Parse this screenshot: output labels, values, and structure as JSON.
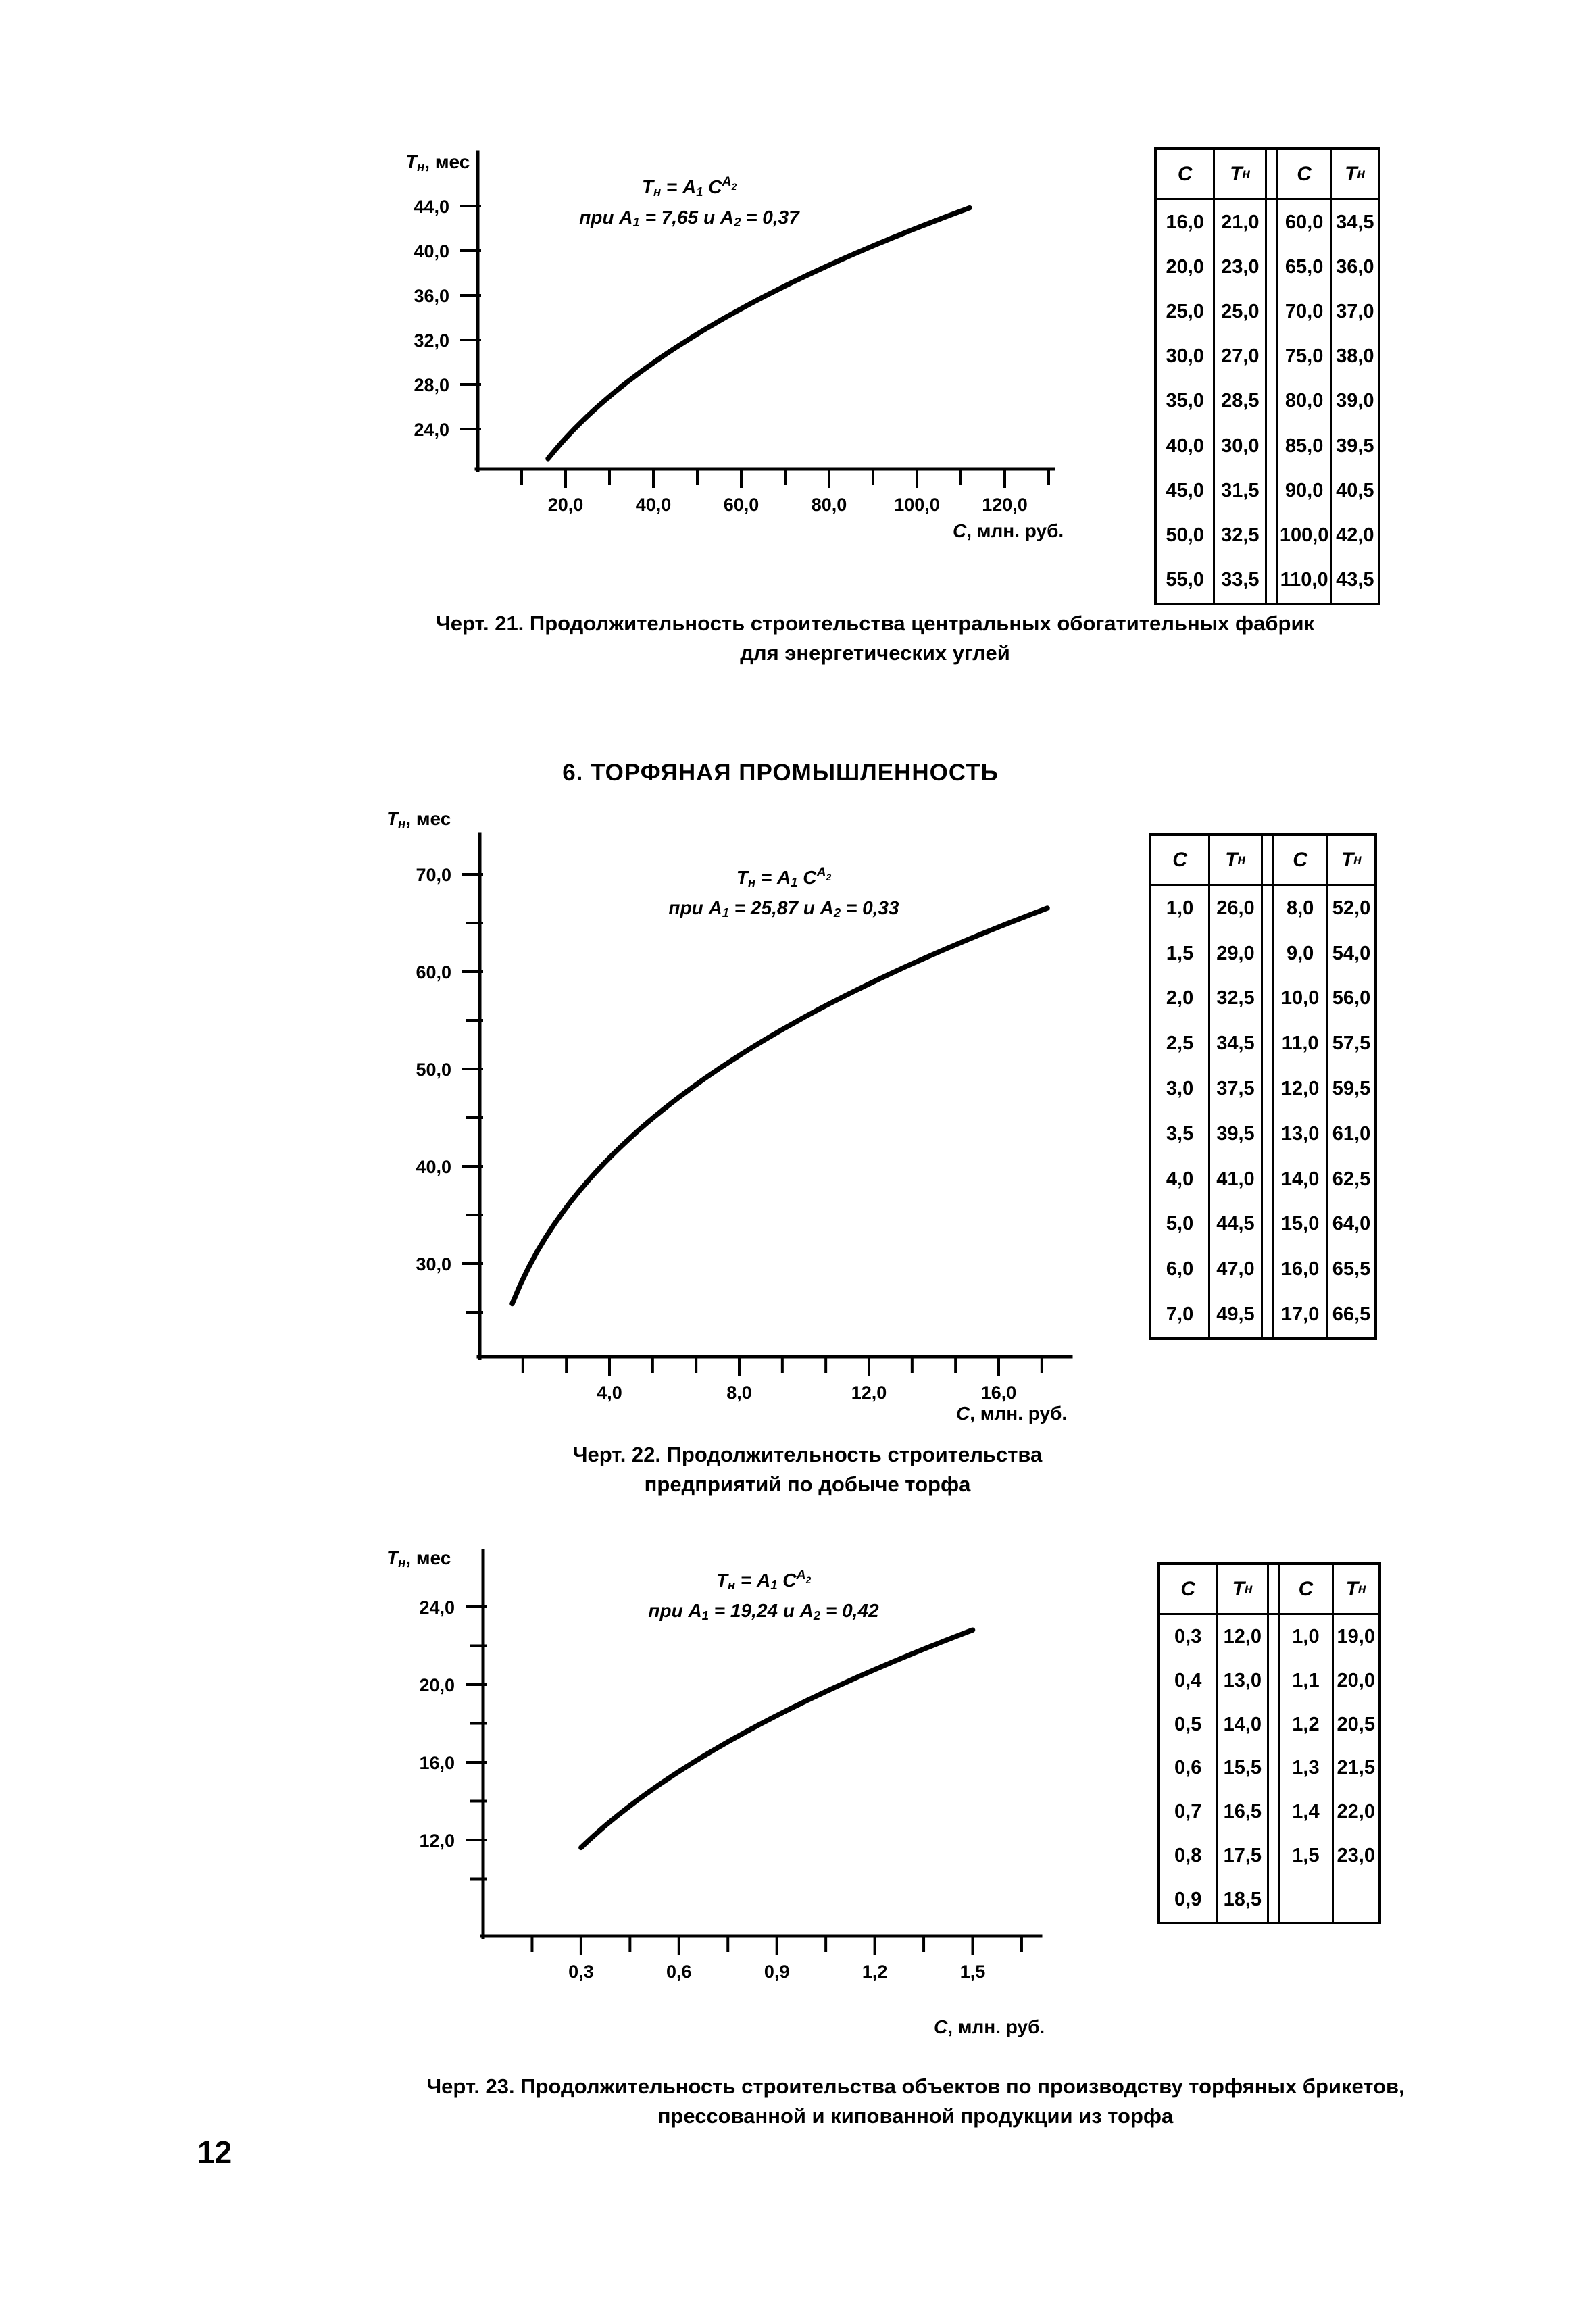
{
  "page": {
    "number": "12",
    "section_header": "6. ТОРФЯНАЯ ПРОМЫШЛЕННОСТЬ"
  },
  "shared": {
    "y_axis_label_tokens": [
      {
        "t": "T"
      },
      {
        "t": "н",
        "s": "sub"
      },
      {
        "t": ", мес",
        "s": "up"
      }
    ],
    "x_axis_label_tokens": [
      {
        "t": "C"
      },
      {
        "t": ", млн. руб.",
        "s": "up"
      }
    ],
    "table_header_C": [
      {
        "t": "C"
      }
    ],
    "table_header_T": [
      {
        "t": "T"
      },
      {
        "t": "н",
        "s": "sub"
      }
    ]
  },
  "figures": [
    {
      "caption": [
        "Черт. 21. Продолжительность строительства центральных обогатительных фабрик",
        "для энергетических углей"
      ],
      "formula_line1": [
        {
          "t": "T"
        },
        {
          "t": "н",
          "s": "sub"
        },
        {
          "t": " = "
        },
        {
          "t": "A"
        },
        {
          "t": "1",
          "s": "sub"
        },
        {
          "t": " C"
        },
        {
          "t": "A",
          "s": "sup"
        },
        {
          "t": "2",
          "s": "supsub"
        }
      ],
      "formula_line2": [
        {
          "t": "при "
        },
        {
          "t": "A"
        },
        {
          "t": "1",
          "s": "sub"
        },
        {
          "t": " = 7,65 и "
        },
        {
          "t": "A"
        },
        {
          "t": "2",
          "s": "sub"
        },
        {
          "t": " = 0,37"
        }
      ],
      "table": {
        "left": [
          [
            "16,0",
            "21,0"
          ],
          [
            "20,0",
            "23,0"
          ],
          [
            "25,0",
            "25,0"
          ],
          [
            "30,0",
            "27,0"
          ],
          [
            "35,0",
            "28,5"
          ],
          [
            "40,0",
            "30,0"
          ],
          [
            "45,0",
            "31,5"
          ],
          [
            "50,0",
            "32,5"
          ],
          [
            "55,0",
            "33,5"
          ]
        ],
        "right": [
          [
            "60,0",
            "34,5"
          ],
          [
            "65,0",
            "36,0"
          ],
          [
            "70,0",
            "37,0"
          ],
          [
            "75,0",
            "38,0"
          ],
          [
            "80,0",
            "39,0"
          ],
          [
            "85,0",
            "39,5"
          ],
          [
            "90,0",
            "40,5"
          ],
          [
            "100,0",
            "42,0"
          ],
          [
            "110,0",
            "43,5"
          ]
        ]
      }
    },
    {
      "caption": [
        "Черт. 22. Продолжительность строительства",
        "предприятий по добыче торфа"
      ],
      "formula_line1": [
        {
          "t": "T"
        },
        {
          "t": "н",
          "s": "sub"
        },
        {
          "t": " = "
        },
        {
          "t": "A"
        },
        {
          "t": "1",
          "s": "sub"
        },
        {
          "t": " C"
        },
        {
          "t": "A",
          "s": "sup"
        },
        {
          "t": "2",
          "s": "supsub"
        }
      ],
      "formula_line2": [
        {
          "t": "при "
        },
        {
          "t": "A"
        },
        {
          "t": "1",
          "s": "sub"
        },
        {
          "t": " = 25,87 и "
        },
        {
          "t": "A"
        },
        {
          "t": "2",
          "s": "sub"
        },
        {
          "t": " = 0,33"
        }
      ],
      "table": {
        "left": [
          [
            "1,0",
            "26,0"
          ],
          [
            "1,5",
            "29,0"
          ],
          [
            "2,0",
            "32,5"
          ],
          [
            "2,5",
            "34,5"
          ],
          [
            "3,0",
            "37,5"
          ],
          [
            "3,5",
            "39,5"
          ],
          [
            "4,0",
            "41,0"
          ],
          [
            "5,0",
            "44,5"
          ],
          [
            "6,0",
            "47,0"
          ],
          [
            "7,0",
            "49,5"
          ]
        ],
        "right": [
          [
            "8,0",
            "52,0"
          ],
          [
            "9,0",
            "54,0"
          ],
          [
            "10,0",
            "56,0"
          ],
          [
            "11,0",
            "57,5"
          ],
          [
            "12,0",
            "59,5"
          ],
          [
            "13,0",
            "61,0"
          ],
          [
            "14,0",
            "62,5"
          ],
          [
            "15,0",
            "64,0"
          ],
          [
            "16,0",
            "65,5"
          ],
          [
            "17,0",
            "66,5"
          ]
        ]
      }
    },
    {
      "caption": [
        "Черт. 23. Продолжительность строительства объектов по производству торфяных брикетов,",
        "прессованной и кипованной продукции из торфа"
      ],
      "formula_line1": [
        {
          "t": "T"
        },
        {
          "t": "н",
          "s": "sub"
        },
        {
          "t": " = "
        },
        {
          "t": "A"
        },
        {
          "t": "1",
          "s": "sub"
        },
        {
          "t": " C"
        },
        {
          "t": "A",
          "s": "sup"
        },
        {
          "t": "2",
          "s": "supsub"
        }
      ],
      "formula_line2": [
        {
          "t": "при "
        },
        {
          "t": "A"
        },
        {
          "t": "1",
          "s": "sub"
        },
        {
          "t": " = 19,24 и "
        },
        {
          "t": "A"
        },
        {
          "t": "2",
          "s": "sub"
        },
        {
          "t": " = 0,42"
        }
      ],
      "table": {
        "left": [
          [
            "0,3",
            "12,0"
          ],
          [
            "0,4",
            "13,0"
          ],
          [
            "0,5",
            "14,0"
          ],
          [
            "0,6",
            "15,5"
          ],
          [
            "0,7",
            "16,5"
          ],
          [
            "0,8",
            "17,5"
          ],
          [
            "0,9",
            "18,5"
          ]
        ],
        "right": [
          [
            "1,0",
            "19,0"
          ],
          [
            "1,1",
            "20,0"
          ],
          [
            "1,2",
            "20,5"
          ],
          [
            "1,3",
            "21,5"
          ],
          [
            "1,4",
            "22,0"
          ],
          [
            "1,5",
            "23,0"
          ]
        ]
      }
    }
  ],
  "chart_data": [
    {
      "type": "line",
      "title": "Черт. 21. Продолжительность строительства центральных обогатительных фабрик для энергетических углей",
      "xlabel": "C, млн. руб.",
      "ylabel": "Tн, мес",
      "equation": "Tн = A1 · C^A2",
      "A1": 7.65,
      "A2": 0.37,
      "x": [
        16,
        20,
        25,
        30,
        35,
        40,
        45,
        50,
        55,
        60,
        65,
        70,
        75,
        80,
        85,
        90,
        100,
        110
      ],
      "y": [
        21,
        23,
        25,
        27,
        28.5,
        30,
        31.5,
        32.5,
        33.5,
        34.5,
        36,
        37,
        38,
        39,
        39.5,
        40.5,
        42,
        43.5
      ],
      "x_major_ticks": [
        20,
        40,
        60,
        80,
        100,
        120
      ],
      "x_tick_labels": [
        "20,0",
        "40,0",
        "60,0",
        "80,0",
        "100,0",
        "120,0"
      ],
      "x_minor_ticks": [
        10,
        30,
        50,
        70,
        90,
        110,
        130
      ],
      "y_major_ticks": [
        44,
        40,
        36,
        32,
        28,
        24
      ],
      "y_tick_labels": [
        "44,0",
        "40,0",
        "36,0",
        "32,0",
        "28,0",
        "24,0"
      ],
      "y_minor_ticks": [],
      "curve_domain": [
        16,
        112
      ],
      "xlim": [
        0,
        131
      ],
      "ylim": [
        20.4,
        49
      ],
      "grid": false,
      "legend": false
    },
    {
      "type": "line",
      "title": "Черт. 22. Продолжительность строительства предприятий по добыче торфа",
      "xlabel": "C, млн. руб.",
      "ylabel": "Tн, мес",
      "equation": "Tн = A1 · C^A2",
      "A1": 25.87,
      "A2": 0.33,
      "x": [
        1,
        1.5,
        2,
        2.5,
        3,
        3.5,
        4,
        5,
        6,
        7,
        8,
        9,
        10,
        11,
        12,
        13,
        14,
        15,
        16,
        17
      ],
      "y": [
        26,
        29,
        32.5,
        34.5,
        37.5,
        39.5,
        41,
        44.5,
        47,
        49.5,
        52,
        54,
        56,
        57.5,
        59.5,
        61,
        62.5,
        64,
        65.5,
        66.5
      ],
      "x_major_ticks": [
        4,
        8,
        12,
        16
      ],
      "x_tick_labels": [
        "4,0",
        "8,0",
        "12,0",
        "16,0"
      ],
      "x_minor_ticks": [
        1.33,
        2.67,
        5.33,
        6.67,
        9.33,
        10.67,
        13.33,
        14.67,
        17.33
      ],
      "y_major_ticks": [
        70,
        60,
        50,
        40,
        30
      ],
      "y_tick_labels": [
        "70,0",
        "60,0",
        "50,0",
        "40,0",
        "30,0"
      ],
      "y_minor_ticks": [
        65,
        55,
        45,
        35,
        25
      ],
      "curve_domain": [
        1,
        17.5
      ],
      "xlim": [
        0,
        18.2
      ],
      "ylim": [
        20.4,
        74
      ],
      "grid": false,
      "legend": false
    },
    {
      "type": "line",
      "title": "Черт. 23. Продолжительность строительства объектов по производству торфяных брикетов, прессованной и кипованной продукции из торфа",
      "xlabel": "C, млн. руб.",
      "ylabel": "Tн, мес",
      "equation": "Tн = A1 · C^A2",
      "A1": 19.24,
      "A2": 0.42,
      "x": [
        0.3,
        0.4,
        0.5,
        0.6,
        0.7,
        0.8,
        0.9,
        1.0,
        1.1,
        1.2,
        1.3,
        1.4,
        1.5
      ],
      "y": [
        12,
        13,
        14,
        15.5,
        16.5,
        17.5,
        18.5,
        19,
        20,
        20.5,
        21.5,
        22,
        23
      ],
      "x_major_ticks": [
        0.3,
        0.6,
        0.9,
        1.2,
        1.5
      ],
      "x_tick_labels": [
        "0,3",
        "0,6",
        "0,9",
        "1,2",
        "1,5"
      ],
      "x_minor_ticks": [
        0.15,
        0.45,
        0.75,
        1.05,
        1.35,
        1.65
      ],
      "y_major_ticks": [
        24,
        20,
        16,
        12
      ],
      "y_tick_labels": [
        "24,0",
        "20,0",
        "16,0",
        "12,0"
      ],
      "y_minor_ticks": [
        10,
        14,
        18,
        22
      ],
      "curve_domain": [
        0.3,
        1.5
      ],
      "xlim": [
        0,
        1.71
      ],
      "ylim": [
        7,
        26
      ],
      "grid": false,
      "legend": false
    }
  ]
}
